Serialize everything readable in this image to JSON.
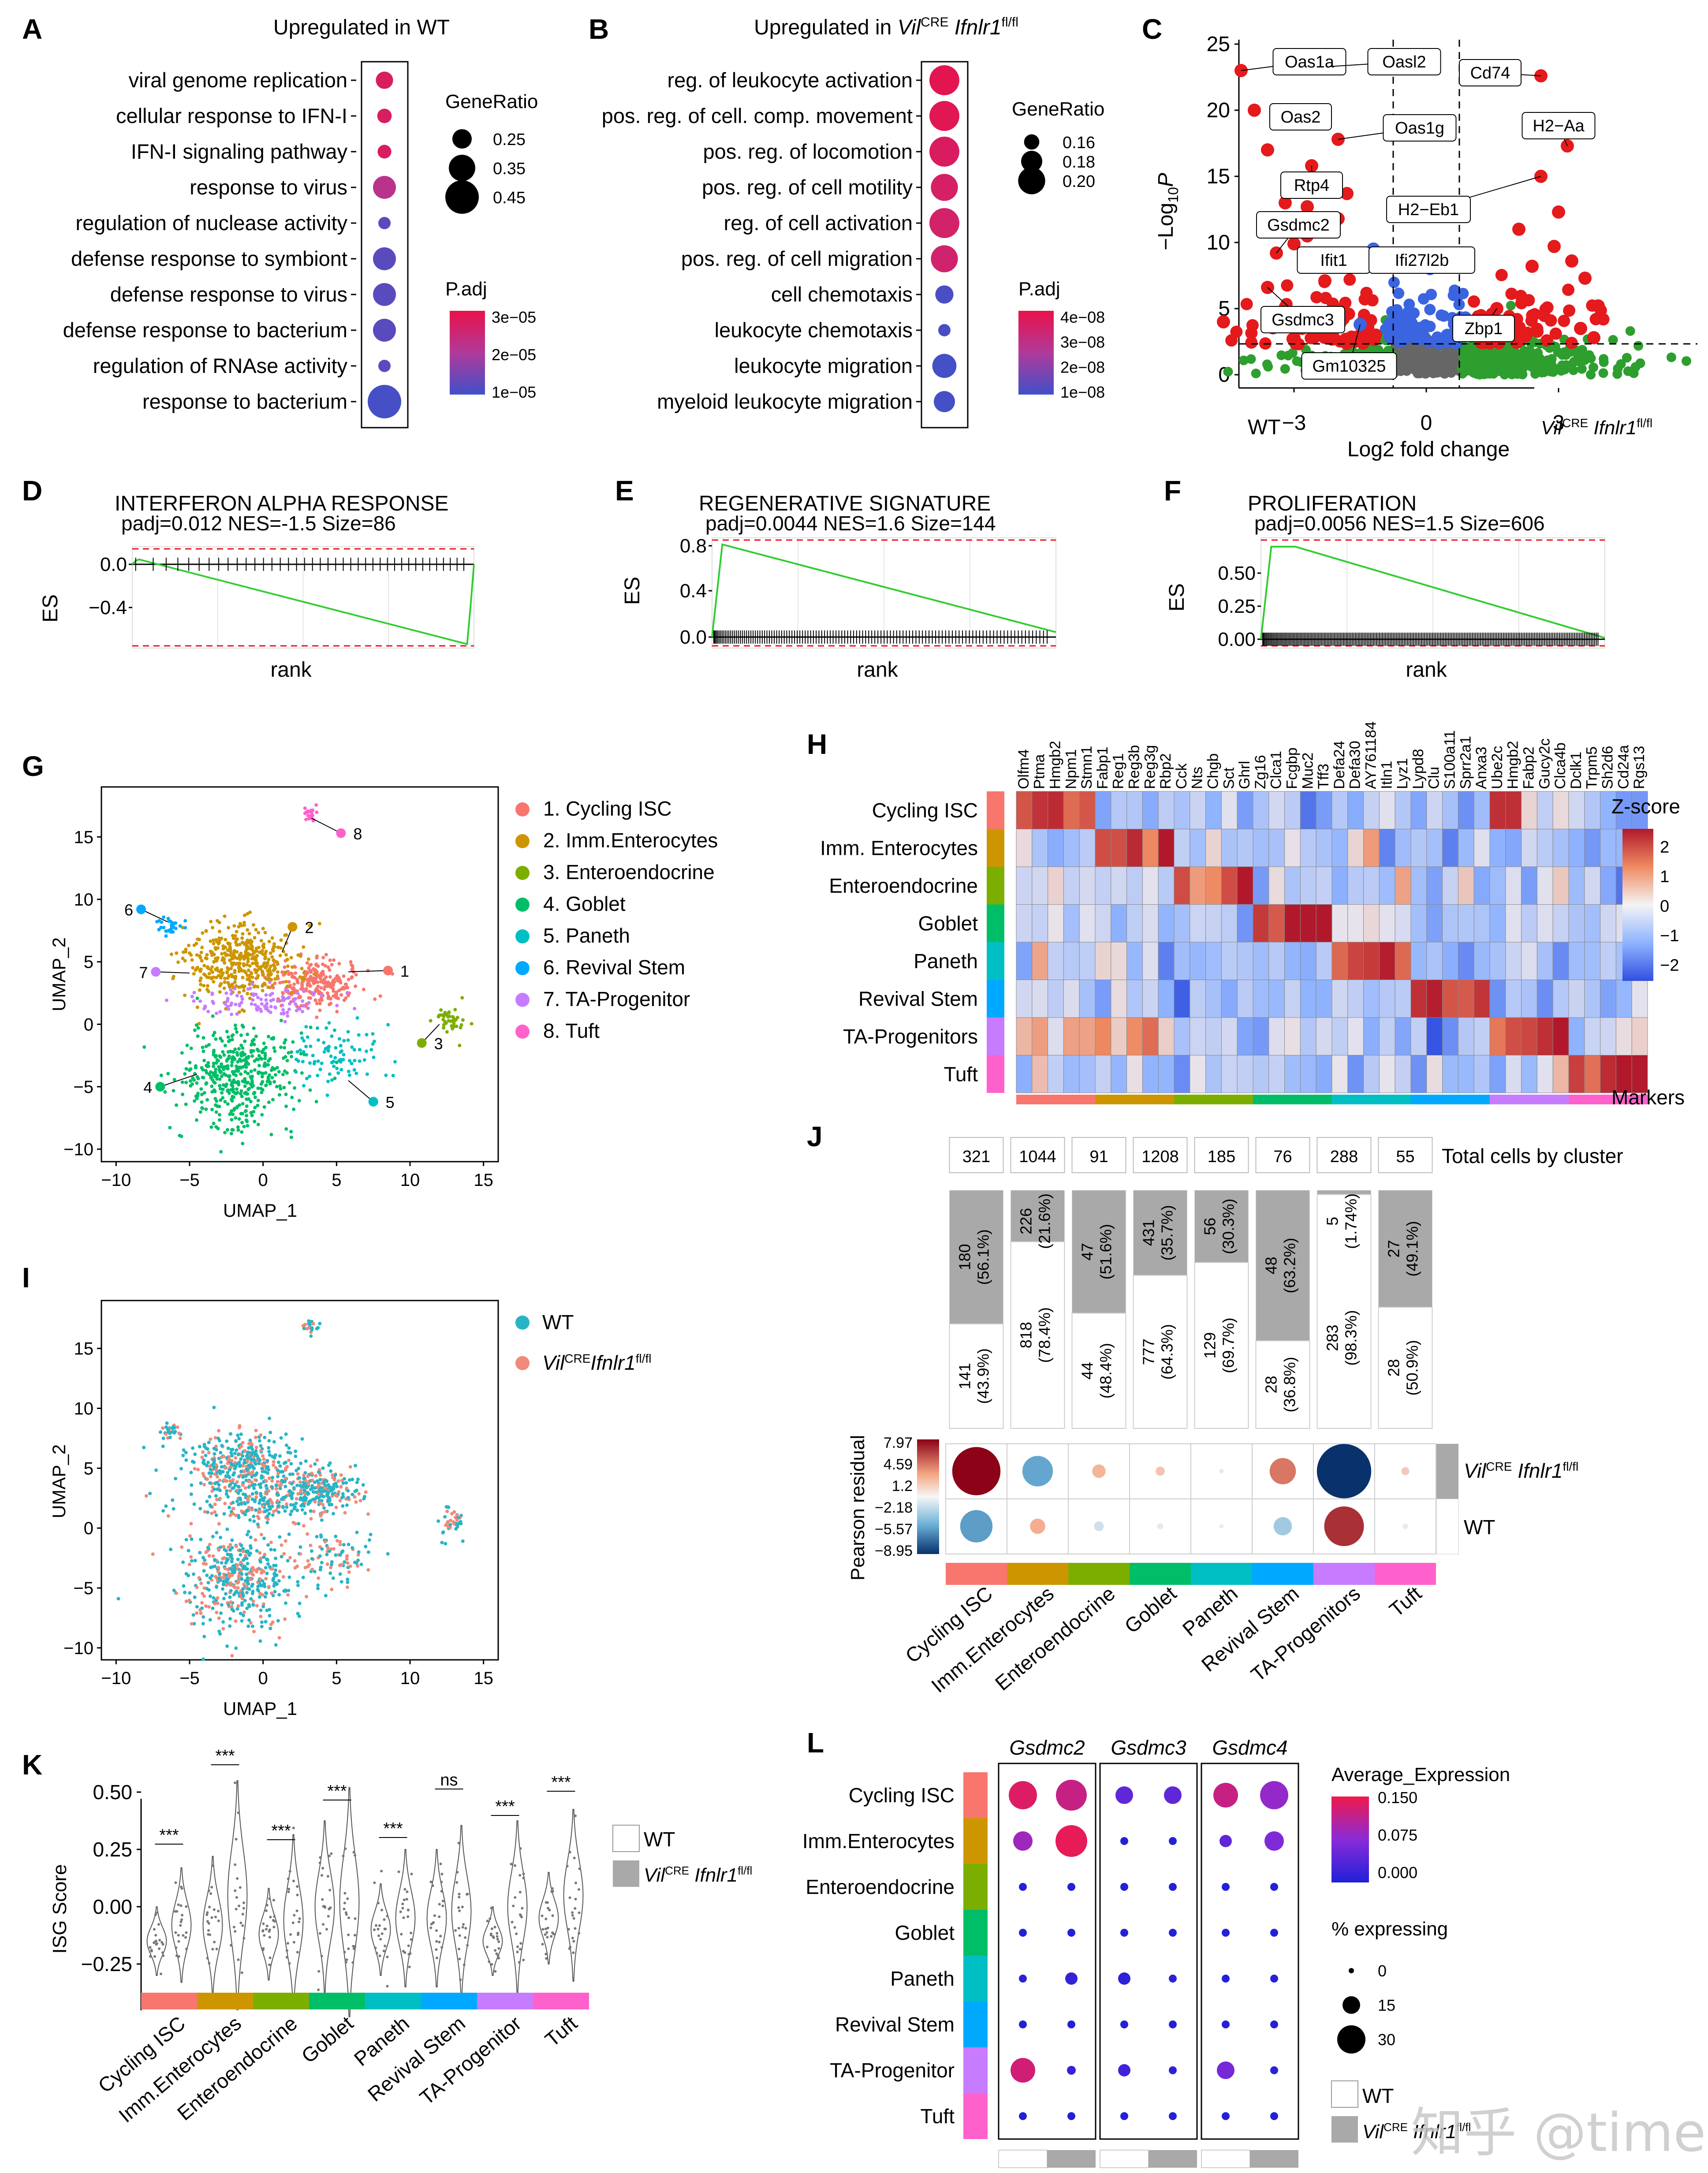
{
  "panels": {
    "A": "A",
    "B": "B",
    "C": "C",
    "D": "D",
    "E": "E",
    "F": "F",
    "G": "G",
    "H": "H",
    "I": "I",
    "J": "J",
    "K": "K",
    "L": "L"
  },
  "colors": {
    "c_cyc": "#f8766d",
    "c_imm": "#cd9600",
    "c_ent": "#7cae00",
    "c_gob": "#00be67",
    "c_pan": "#00bfc4",
    "c_rev": "#00a9ff",
    "c_ta": "#c77cff",
    "c_tuf": "#ff61cc",
    "wt": "#27b5c6",
    "ko": "#f08a7a",
    "red": "#e41a1c",
    "blue": "#3b64e0",
    "green": "#2e9e2e"
  },
  "A": {
    "title": "Upregulated in WT",
    "terms": [
      "viral genome replication",
      "cellular response to IFN-I",
      "IFN-I signaling pathway",
      "response to virus",
      "regulation of nuclease activity",
      "defense response to symbiont",
      "defense response to virus",
      "defense response to bacterium",
      "regulation of RNAse activity",
      "response to bacterium"
    ],
    "gene_ratio": [
      0.22,
      0.18,
      0.17,
      0.3,
      0.15,
      0.3,
      0.3,
      0.3,
      0.15,
      0.45
    ],
    "padj": [
      5e-06,
      5e-06,
      5e-06,
      1.5e-05,
      3.2e-05,
      3.2e-05,
      3.2e-05,
      3.2e-05,
      3.2e-05,
      3.5e-05
    ],
    "size_title": "GeneRatio",
    "size_labels": [
      "0.25",
      "0.35",
      "0.45"
    ],
    "size_values": [
      0.25,
      0.35,
      0.45
    ],
    "color_title": "P.adj",
    "color_labels": [
      "3e−05",
      "2e−05",
      "1e−05"
    ]
  },
  "B": {
    "title_pre": "Upregulated in ",
    "title_gene": "Vil",
    "title_sup": "CRE",
    "title_gene2": " Ifnlr1",
    "title_sup2": "fl/fl",
    "terms": [
      "reg. of leukocyte activation",
      "pos. reg. of cell. comp. movement",
      "pos. reg. of locomotion",
      "pos. reg. of cell motility",
      "reg. of cell activation",
      "pos. reg. of cell migration",
      "cell chemotaxis",
      "leukocyte chemotaxis",
      "leukocyte migration",
      "myeloid leukocyte migration"
    ],
    "gene_ratio": [
      0.21,
      0.21,
      0.21,
      0.2,
      0.21,
      0.2,
      0.17,
      0.15,
      0.19,
      0.18
    ],
    "padj": [
      2e-09,
      3e-09,
      6e-09,
      8e-09,
      9e-09,
      1e-08,
      4.4e-08,
      4.4e-08,
      4.5e-08,
      4.5e-08
    ],
    "size_title": "GeneRatio",
    "size_labels": [
      "0.16",
      "0.18",
      "0.20"
    ],
    "size_values": [
      0.16,
      0.18,
      0.2
    ],
    "color_title": "P.adj",
    "color_labels": [
      "4e−08",
      "3e−08",
      "2e−08",
      "1e−08"
    ]
  },
  "C": {
    "ylabel": "−Log",
    "ylabel_sub": "10",
    "ylabel_P": "P",
    "xlabel": "Log2 fold change",
    "yticks": [
      "0",
      "5",
      "10",
      "15",
      "20",
      "25"
    ],
    "xticks": [
      "−3",
      "0",
      "3"
    ],
    "left_label": "WT",
    "right_label_gene": "Vil",
    "right_label_sup": "CRE",
    "right_label_gene2": " Ifnlr1",
    "right_label_sup2": "fl/fl",
    "genes": [
      {
        "name": "Oas1a",
        "x": -4.2,
        "y": 23.0
      },
      {
        "name": "Oasl2",
        "x": -2.2,
        "y": 23.3
      },
      {
        "name": "Oas2",
        "x": -3.0,
        "y": 19.2
      },
      {
        "name": "Oas1g",
        "x": -2.0,
        "y": 17.8
      },
      {
        "name": "Rtp4",
        "x": -2.6,
        "y": 15.8
      },
      {
        "name": "Gsdmc2",
        "x": -3.4,
        "y": 9.2
      },
      {
        "name": "Ifit1",
        "x": -2.1,
        "y": 9.0
      },
      {
        "name": "Ifi27l2b",
        "x": -1.2,
        "y": 9.5
      },
      {
        "name": "Gsdmc3",
        "x": -3.6,
        "y": 6.6
      },
      {
        "name": "Gm10325",
        "x": -1.5,
        "y": 3.8
      },
      {
        "name": "Cd74",
        "x": 2.6,
        "y": 22.6
      },
      {
        "name": "H2−Aa",
        "x": 3.2,
        "y": 17.3
      },
      {
        "name": "H2−Eb1",
        "x": 2.6,
        "y": 15.0
      },
      {
        "name": "Zbp1",
        "x": 1.6,
        "y": 5.0
      }
    ]
  },
  "D": {
    "title": "INTERFERON ALPHA RESPONSE",
    "stats": "padj=0.012 NES=-1.5 Size=86",
    "ylabel": "ES",
    "xlabel": "rank",
    "yticks": [
      "0.0",
      "−0.4"
    ]
  },
  "E": {
    "title": "REGENERATIVE SIGNATURE",
    "stats": "padj=0.0044 NES=1.6 Size=144",
    "ylabel": "ES",
    "xlabel": "rank",
    "yticks": [
      "0.8",
      "0.4",
      "0.0"
    ]
  },
  "F": {
    "title": "PROLIFERATION",
    "stats": "padj=0.0056 NES=1.5 Size=606",
    "ylabel": "ES",
    "xlabel": "rank",
    "yticks": [
      "0.50",
      "0.25",
      "0.00"
    ]
  },
  "G": {
    "xlabel": "UMAP_1",
    "ylabel": "UMAP_2",
    "xticks": [
      "−10",
      "−5",
      "0",
      "5",
      "10",
      "15"
    ],
    "yticks": [
      "15",
      "10",
      "5",
      "0",
      "−5",
      "−10"
    ],
    "legend": [
      "1. Cycling ISC",
      "2. Imm.Enterocytes",
      "3. Enteroendocrine",
      "4. Goblet",
      "5. Paneth",
      "6. Revival Stem",
      "7. TA-Progenitor",
      "8. Tuft"
    ],
    "numbers": [
      "1",
      "2",
      "3",
      "4",
      "5",
      "6",
      "7",
      "8"
    ]
  },
  "H": {
    "rows": [
      "Cycling ISC",
      "Imm. Enterocytes",
      "Enteroendocrine",
      "Goblet",
      "Paneth",
      "Revival Stem",
      "TA-Progenitors",
      "Tuft"
    ],
    "genes": [
      "Olfm4",
      "Ptma",
      "Hmgb2",
      "Npm1",
      "Stmn1",
      "Fabp1",
      "Reg1",
      "Reg3b",
      "Reg3g",
      "Rbp2",
      "Cck",
      "Nts",
      "Chgb",
      "Sct",
      "Ghrl",
      "Zg16",
      "Clca1",
      "Fcgbp",
      "Muc2",
      "Tff3",
      "Defa24",
      "Defa30",
      "AY761184",
      "Itln1",
      "Lyz1",
      "Lypd8",
      "Clu",
      "S100a11",
      "Sprr2a1",
      "Anxa3",
      "Ube2c",
      "Hmgb2",
      "Fabp2",
      "Gucy2c",
      "Clca4b",
      "Dclk1",
      "Trpm5",
      "Sh2d6",
      "Cd24a",
      "Rgs13"
    ],
    "legend_title": "Z-score",
    "legend_labels": [
      "2",
      "1",
      "0",
      "−1",
      "−2"
    ],
    "markers_label": "Markers"
  },
  "I": {
    "xlabel": "UMAP_1",
    "ylabel": "UMAP_2",
    "xticks": [
      "−10",
      "−5",
      "0",
      "5",
      "10",
      "15"
    ],
    "yticks": [
      "15",
      "10",
      "5",
      "0",
      "−5",
      "−10"
    ],
    "legend_wt": "WT",
    "legend_ko_gene": "Vil",
    "legend_ko_sup": "CRE",
    "legend_ko_gene2": "Ifnlr1",
    "legend_ko_sup2": "fl/fl"
  },
  "J": {
    "totals": [
      "321",
      "1044",
      "91",
      "1208",
      "185",
      "76",
      "288",
      "55"
    ],
    "total_label": "Total cells by cluster",
    "ko_counts": [
      "180",
      "226",
      "47",
      "431",
      "56",
      "48",
      "5",
      "27"
    ],
    "ko_pct": [
      "(56.1%)",
      "(21.6%)",
      "(51.6%)",
      "(35.7%)",
      "(30.3%)",
      "(63.2%)",
      "(1.74%)",
      "(49.1%)"
    ],
    "wt_counts": [
      "141",
      "818",
      "44",
      "777",
      "129",
      "28",
      "283",
      "28"
    ],
    "wt_pct": [
      "(43.9%)",
      "(78.4%)",
      "(48.4%)",
      "(64.3%)",
      "(69.7%)",
      "(36.8%)",
      "(98.3%)",
      "(50.9%)"
    ],
    "ko_fraction": [
      0.561,
      0.216,
      0.516,
      0.357,
      0.303,
      0.632,
      0.0174,
      0.491
    ],
    "residual_ko": [
      7.9,
      -5.0,
      2.2,
      1.5,
      0.1,
      4.3,
      -8.9,
      1.3
    ],
    "residual_wt": [
      -5.3,
      2.5,
      -1.6,
      -1.0,
      -0.1,
      -3.0,
      6.5,
      -0.9
    ],
    "legend_title": "Pearson residual",
    "legend_labels": [
      "7.97",
      "4.59",
      "1.2",
      "−2.18",
      "−5.57",
      "−8.95"
    ],
    "row_ko_gene": "Vil",
    "row_ko_sup": "CRE",
    "row_ko_gene2": " Ifnlr1",
    "row_ko_sup2": "fl/fl",
    "row_wt": "WT",
    "clusters": [
      "Cycling ISC",
      "Imm.Enterocytes",
      "Enteroendocrine",
      "Goblet",
      "Paneth",
      "Revival Stem",
      "TA-Progenitors",
      "Tuft"
    ]
  },
  "K": {
    "ylabel": "ISG Score",
    "yticks": [
      "0.50",
      "0.25",
      "0.00",
      "−0.25"
    ],
    "clusters": [
      "Cycling ISC",
      "Imm.Enterocytes",
      "Enteroendocrine",
      "Goblet",
      "Paneth",
      "Revival Stem",
      "TA-Progenitor",
      "Tuft"
    ],
    "sig": [
      "***",
      "***",
      "***",
      "***",
      "***",
      "ns",
      "***",
      "***"
    ],
    "legend_wt": "WT",
    "legend_ko_gene": "Vil",
    "legend_ko_sup": "CRE",
    "legend_ko_gene2": " Ifnlr1",
    "legend_ko_sup2": "fl/fl"
  },
  "L": {
    "genes": [
      "Gsdmc2",
      "Gsdmc3",
      "Gsdmc4"
    ],
    "rows": [
      "Cycling ISC",
      "Imm.Enterocytes",
      "Enteroendocrine",
      "Goblet",
      "Paneth",
      "Revival Stem",
      "TA-Progenitor",
      "Tuft"
    ],
    "legend_expr_title": "Average_Expression",
    "legend_expr_labels": [
      "0.150",
      "0.075",
      "0.000"
    ],
    "legend_pct_title": "% expressing",
    "legend_pct_labels": [
      "0",
      "15",
      "30"
    ],
    "legend_wt": "WT",
    "legend_ko_gene": "Vil",
    "legend_ko_sup": "CRE",
    "legend_ko_gene2": " Ifnlr1",
    "legend_ko_sup2": "fl/fl"
  },
  "watermark": "知乎 @time"
}
